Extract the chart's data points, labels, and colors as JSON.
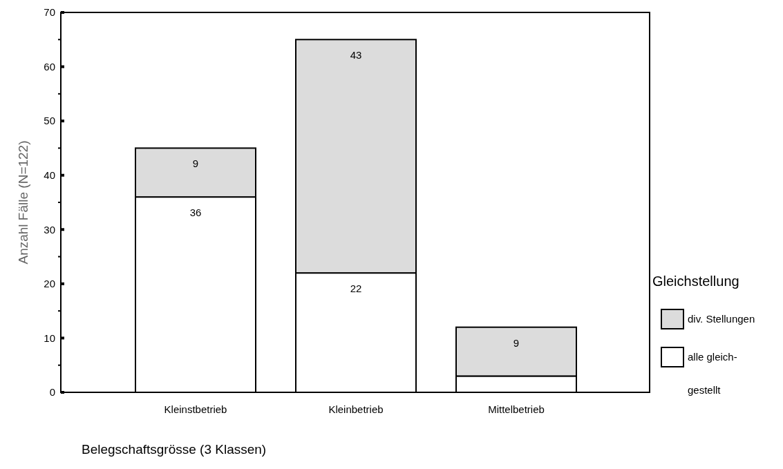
{
  "chart_data": {
    "type": "bar",
    "stacked": true,
    "xlabel": "Belegschaftsgrösse (3 Klassen)",
    "ylabel": "Anzahl Fälle (N=122)",
    "legend_title": "Gleichstellung",
    "categories": [
      "Kleinstbetrieb",
      "Kleinbetrieb",
      "Mittelbetrieb"
    ],
    "series": [
      {
        "name": "alle gleich-gestellt",
        "color": "#ffffff",
        "values": [
          36,
          22,
          3
        ],
        "value_labels": [
          "36",
          "22",
          null
        ]
      },
      {
        "name": "div. Stellungen",
        "color": "#dcdcdc",
        "values": [
          9,
          43,
          9
        ],
        "value_labels": [
          "9",
          "43",
          "9"
        ]
      }
    ],
    "ylim": [
      0,
      70
    ],
    "yticks": [
      0,
      {
        "value": 5,
        "label": null
      },
      10,
      {
        "value": 15,
        "label": null
      },
      20,
      {
        "value": 25,
        "label": null
      },
      30,
      {
        "value": 35,
        "label": null
      },
      40,
      {
        "value": 45,
        "label": null
      },
      50,
      {
        "value": 55,
        "label": null
      },
      60,
      {
        "value": 65,
        "label": null
      },
      70
    ],
    "grid": false,
    "legend": "right"
  }
}
